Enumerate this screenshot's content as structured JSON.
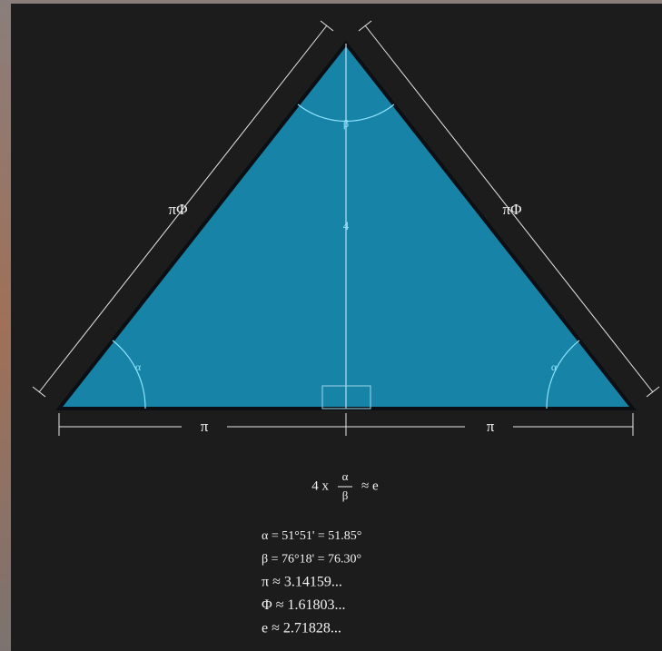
{
  "labels": {
    "left_side": "πΦ",
    "right_side": "πΦ",
    "apex_angle": "β",
    "height": "4",
    "left_angle": "α",
    "right_angle": "α",
    "left_base": "π",
    "right_base": "π"
  },
  "formula": {
    "prefix": "4 x",
    "numerator": "α",
    "denominator": "β",
    "suffix": "≈ e"
  },
  "definitions": [
    "α = 51°51' = 51.85°",
    "β = 76°18' = 76.30°",
    "π ≈ 3.14159...",
    "Φ ≈ 1.61803...",
    "e ≈ 2.71828..."
  ]
}
